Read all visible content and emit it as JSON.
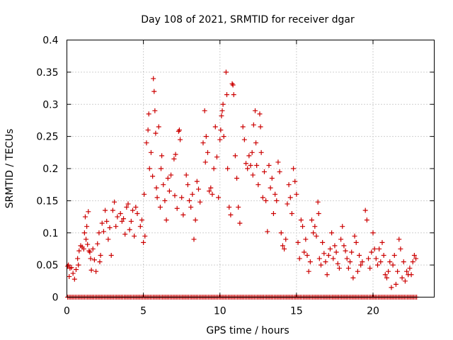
{
  "chart_data": {
    "type": "scatter",
    "title": "Day 108 of 2021, SRMTID for receiver dgar",
    "xlabel": "GPS time / hours",
    "ylabel": "SRMTID / TECUs",
    "xlim": [
      0,
      24
    ],
    "ylim": [
      0,
      0.4
    ],
    "xticks": [
      0,
      5,
      10,
      15,
      20
    ],
    "xtick_labels": [
      "0",
      "5",
      "10",
      "15",
      "20"
    ],
    "yticks": [
      0,
      0.05,
      0.1,
      0.15,
      0.2,
      0.25,
      0.3,
      0.35,
      0.4
    ],
    "ytick_labels": [
      "0",
      "0.05",
      "0.1",
      "0.15",
      "0.2",
      "0.25",
      "0.3",
      "0.35",
      "0.4"
    ],
    "grid": true,
    "marker": "plus",
    "color": "#cc0000",
    "series": [
      {
        "name": "dgar",
        "points": [
          [
            0.05,
            0.048
          ],
          [
            0.1,
            0.05
          ],
          [
            0.15,
            0.032
          ],
          [
            0.2,
            0.045
          ],
          [
            0.3,
            0.046
          ],
          [
            0.4,
            0.037
          ],
          [
            0.5,
            0.028
          ],
          [
            0.6,
            0.043
          ],
          [
            0.7,
            0.06
          ],
          [
            0.75,
            0.05
          ],
          [
            0.8,
            0.072
          ],
          [
            0.9,
            0.08
          ],
          [
            1.0,
            0.078
          ],
          [
            1.1,
            0.075
          ],
          [
            1.15,
            0.1
          ],
          [
            1.2,
            0.125
          ],
          [
            1.25,
            0.09
          ],
          [
            1.3,
            0.11
          ],
          [
            1.35,
            0.082
          ],
          [
            1.4,
            0.133
          ],
          [
            1.45,
            0.072
          ],
          [
            1.5,
            0.07
          ],
          [
            1.55,
            0.06
          ],
          [
            1.6,
            0.042
          ],
          [
            1.7,
            0.075
          ],
          [
            1.8,
            0.058
          ],
          [
            1.9,
            0.04
          ],
          [
            2.0,
            0.083
          ],
          [
            2.1,
            0.1
          ],
          [
            2.15,
            0.055
          ],
          [
            2.2,
            0.065
          ],
          [
            2.3,
            0.115
          ],
          [
            2.4,
            0.102
          ],
          [
            2.5,
            0.135
          ],
          [
            2.6,
            0.118
          ],
          [
            2.7,
            0.09
          ],
          [
            2.8,
            0.108
          ],
          [
            2.9,
            0.065
          ],
          [
            3.0,
            0.135
          ],
          [
            3.1,
            0.148
          ],
          [
            3.2,
            0.11
          ],
          [
            3.3,
            0.125
          ],
          [
            3.5,
            0.13
          ],
          [
            3.6,
            0.118
          ],
          [
            3.7,
            0.122
          ],
          [
            3.8,
            0.098
          ],
          [
            3.9,
            0.14
          ],
          [
            4.0,
            0.145
          ],
          [
            4.1,
            0.105
          ],
          [
            4.2,
            0.118
          ],
          [
            4.3,
            0.135
          ],
          [
            4.4,
            0.095
          ],
          [
            4.5,
            0.14
          ],
          [
            4.6,
            0.13
          ],
          [
            4.8,
            0.11
          ],
          [
            4.9,
            0.12
          ],
          [
            5.0,
            0.085
          ],
          [
            5.05,
            0.16
          ],
          [
            5.1,
            0.095
          ],
          [
            5.2,
            0.24
          ],
          [
            5.3,
            0.26
          ],
          [
            5.35,
            0.285
          ],
          [
            5.4,
            0.2
          ],
          [
            5.5,
            0.225
          ],
          [
            5.6,
            0.188
          ],
          [
            5.65,
            0.34
          ],
          [
            5.7,
            0.32
          ],
          [
            5.75,
            0.29
          ],
          [
            5.8,
            0.255
          ],
          [
            5.85,
            0.17
          ],
          [
            5.9,
            0.155
          ],
          [
            6.0,
            0.265
          ],
          [
            6.1,
            0.14
          ],
          [
            6.15,
            0.2
          ],
          [
            6.2,
            0.22
          ],
          [
            6.3,
            0.175
          ],
          [
            6.4,
            0.15
          ],
          [
            6.5,
            0.12
          ],
          [
            6.6,
            0.185
          ],
          [
            6.7,
            0.165
          ],
          [
            6.8,
            0.19
          ],
          [
            7.0,
            0.215
          ],
          [
            7.05,
            0.158
          ],
          [
            7.1,
            0.222
          ],
          [
            7.2,
            0.138
          ],
          [
            7.3,
            0.258
          ],
          [
            7.35,
            0.26
          ],
          [
            7.4,
            0.245
          ],
          [
            7.5,
            0.155
          ],
          [
            7.6,
            0.128
          ],
          [
            7.8,
            0.19
          ],
          [
            7.9,
            0.175
          ],
          [
            8.0,
            0.15
          ],
          [
            8.1,
            0.14
          ],
          [
            8.2,
            0.16
          ],
          [
            8.3,
            0.09
          ],
          [
            8.4,
            0.12
          ],
          [
            8.5,
            0.18
          ],
          [
            8.6,
            0.168
          ],
          [
            8.7,
            0.148
          ],
          [
            8.9,
            0.24
          ],
          [
            9.0,
            0.29
          ],
          [
            9.05,
            0.21
          ],
          [
            9.1,
            0.25
          ],
          [
            9.2,
            0.225
          ],
          [
            9.3,
            0.165
          ],
          [
            9.4,
            0.17
          ],
          [
            9.5,
            0.16
          ],
          [
            9.6,
            0.2
          ],
          [
            9.7,
            0.265
          ],
          [
            9.8,
            0.218
          ],
          [
            9.9,
            0.155
          ],
          [
            10.0,
            0.245
          ],
          [
            10.05,
            0.26
          ],
          [
            10.1,
            0.282
          ],
          [
            10.15,
            0.29
          ],
          [
            10.2,
            0.3
          ],
          [
            10.25,
            0.25
          ],
          [
            10.4,
            0.35
          ],
          [
            10.45,
            0.315
          ],
          [
            10.5,
            0.2
          ],
          [
            10.6,
            0.14
          ],
          [
            10.7,
            0.128
          ],
          [
            10.8,
            0.332
          ],
          [
            10.85,
            0.33
          ],
          [
            10.9,
            0.315
          ],
          [
            11.0,
            0.22
          ],
          [
            11.1,
            0.185
          ],
          [
            11.2,
            0.14
          ],
          [
            11.3,
            0.115
          ],
          [
            11.5,
            0.265
          ],
          [
            11.6,
            0.245
          ],
          [
            11.7,
            0.208
          ],
          [
            11.8,
            0.2
          ],
          [
            11.9,
            0.22
          ],
          [
            12.0,
            0.205
          ],
          [
            12.1,
            0.225
          ],
          [
            12.15,
            0.19
          ],
          [
            12.2,
            0.268
          ],
          [
            12.3,
            0.29
          ],
          [
            12.35,
            0.24
          ],
          [
            12.4,
            0.205
          ],
          [
            12.5,
            0.175
          ],
          [
            12.6,
            0.285
          ],
          [
            12.65,
            0.265
          ],
          [
            12.7,
            0.225
          ],
          [
            12.8,
            0.155
          ],
          [
            12.9,
            0.195
          ],
          [
            13.0,
            0.15
          ],
          [
            13.1,
            0.102
          ],
          [
            13.2,
            0.205
          ],
          [
            13.3,
            0.17
          ],
          [
            13.4,
            0.185
          ],
          [
            13.5,
            0.13
          ],
          [
            13.6,
            0.16
          ],
          [
            13.7,
            0.15
          ],
          [
            13.8,
            0.21
          ],
          [
            13.9,
            0.195
          ],
          [
            14.0,
            0.1
          ],
          [
            14.1,
            0.08
          ],
          [
            14.2,
            0.075
          ],
          [
            14.3,
            0.09
          ],
          [
            14.4,
            0.145
          ],
          [
            14.5,
            0.175
          ],
          [
            14.6,
            0.155
          ],
          [
            14.7,
            0.13
          ],
          [
            14.8,
            0.2
          ],
          [
            14.9,
            0.18
          ],
          [
            15.0,
            0.16
          ],
          [
            15.1,
            0.085
          ],
          [
            15.2,
            0.06
          ],
          [
            15.3,
            0.12
          ],
          [
            15.4,
            0.11
          ],
          [
            15.5,
            0.07
          ],
          [
            15.6,
            0.09
          ],
          [
            15.7,
            0.065
          ],
          [
            15.8,
            0.04
          ],
          [
            15.9,
            0.055
          ],
          [
            16.0,
            0.12
          ],
          [
            16.1,
            0.1
          ],
          [
            16.2,
            0.11
          ],
          [
            16.3,
            0.095
          ],
          [
            16.4,
            0.148
          ],
          [
            16.45,
            0.13
          ],
          [
            16.5,
            0.06
          ],
          [
            16.6,
            0.05
          ],
          [
            16.7,
            0.085
          ],
          [
            16.8,
            0.068
          ],
          [
            16.9,
            0.055
          ],
          [
            17.0,
            0.035
          ],
          [
            17.1,
            0.065
          ],
          [
            17.2,
            0.075
          ],
          [
            17.3,
            0.1
          ],
          [
            17.4,
            0.06
          ],
          [
            17.5,
            0.08
          ],
          [
            17.6,
            0.07
          ],
          [
            17.7,
            0.052
          ],
          [
            17.8,
            0.045
          ],
          [
            17.9,
            0.09
          ],
          [
            18.0,
            0.11
          ],
          [
            18.1,
            0.08
          ],
          [
            18.2,
            0.072
          ],
          [
            18.3,
            0.06
          ],
          [
            18.4,
            0.045
          ],
          [
            18.5,
            0.055
          ],
          [
            18.6,
            0.07
          ],
          [
            18.7,
            0.03
          ],
          [
            18.8,
            0.095
          ],
          [
            18.9,
            0.085
          ],
          [
            19.0,
            0.04
          ],
          [
            19.1,
            0.065
          ],
          [
            19.2,
            0.05
          ],
          [
            19.3,
            0.055
          ],
          [
            19.5,
            0.135
          ],
          [
            19.6,
            0.12
          ],
          [
            19.7,
            0.06
          ],
          [
            19.8,
            0.045
          ],
          [
            19.9,
            0.07
          ],
          [
            20.0,
            0.1
          ],
          [
            20.1,
            0.075
          ],
          [
            20.2,
            0.06
          ],
          [
            20.3,
            0.05
          ],
          [
            20.4,
            0.075
          ],
          [
            20.5,
            0.055
          ],
          [
            20.6,
            0.085
          ],
          [
            20.7,
            0.065
          ],
          [
            20.8,
            0.035
          ],
          [
            20.9,
            0.03
          ],
          [
            21.0,
            0.04
          ],
          [
            21.1,
            0.055
          ],
          [
            21.2,
            0.015
          ],
          [
            21.3,
            0.05
          ],
          [
            21.4,
            0.065
          ],
          [
            21.5,
            0.02
          ],
          [
            21.6,
            0.04
          ],
          [
            21.7,
            0.09
          ],
          [
            21.8,
            0.075
          ],
          [
            21.9,
            0.03
          ],
          [
            22.0,
            0.055
          ],
          [
            22.1,
            0.025
          ],
          [
            22.2,
            0.04
          ],
          [
            22.3,
            0.035
          ],
          [
            22.4,
            0.045
          ],
          [
            22.5,
            0.035
          ],
          [
            22.6,
            0.055
          ],
          [
            22.7,
            0.065
          ],
          [
            22.8,
            0.06
          ]
        ]
      }
    ],
    "zero_band": {
      "start": 0.05,
      "end": 22.9,
      "step": 0.1,
      "value": 0
    }
  }
}
